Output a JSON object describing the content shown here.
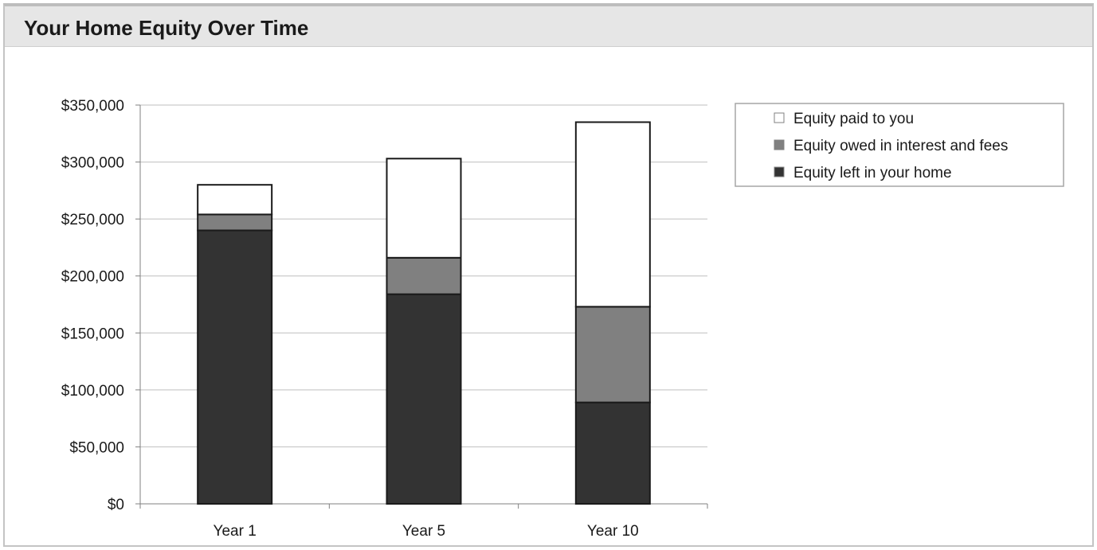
{
  "header": {
    "title": "Your Home Equity Over Time"
  },
  "colors": {
    "equity_left": "#333333",
    "equity_owed": "#808080",
    "equity_paid": "#ffffff",
    "grid": "#bfbfbf",
    "outline": "#1a1a1a"
  },
  "chart_data": {
    "type": "bar",
    "stacked": true,
    "title": "",
    "xlabel": "",
    "ylabel": "",
    "categories": [
      "Year 1",
      "Year 5",
      "Year 10"
    ],
    "series": [
      {
        "name": "Equity left in your home",
        "values": [
          240000,
          184000,
          89000
        ],
        "color": "#333333"
      },
      {
        "name": "Equity owed in interest and fees",
        "values": [
          14000,
          32000,
          84000
        ],
        "color": "#808080"
      },
      {
        "name": "Equity paid to you",
        "values": [
          26000,
          87000,
          162000
        ],
        "color": "#ffffff"
      }
    ],
    "ylim": [
      0,
      350000
    ],
    "yticks": [
      0,
      50000,
      100000,
      150000,
      200000,
      250000,
      300000,
      350000
    ],
    "ytick_labels": [
      "$0",
      "$50,000",
      "$100,000",
      "$150,000",
      "$200,000",
      "$250,000",
      "$300,000",
      "$350,000"
    ],
    "grid": true,
    "legend": {
      "position": "top-right",
      "entries": [
        "Equity paid to you",
        "Equity owed in interest and fees",
        "Equity left in your home"
      ]
    }
  }
}
